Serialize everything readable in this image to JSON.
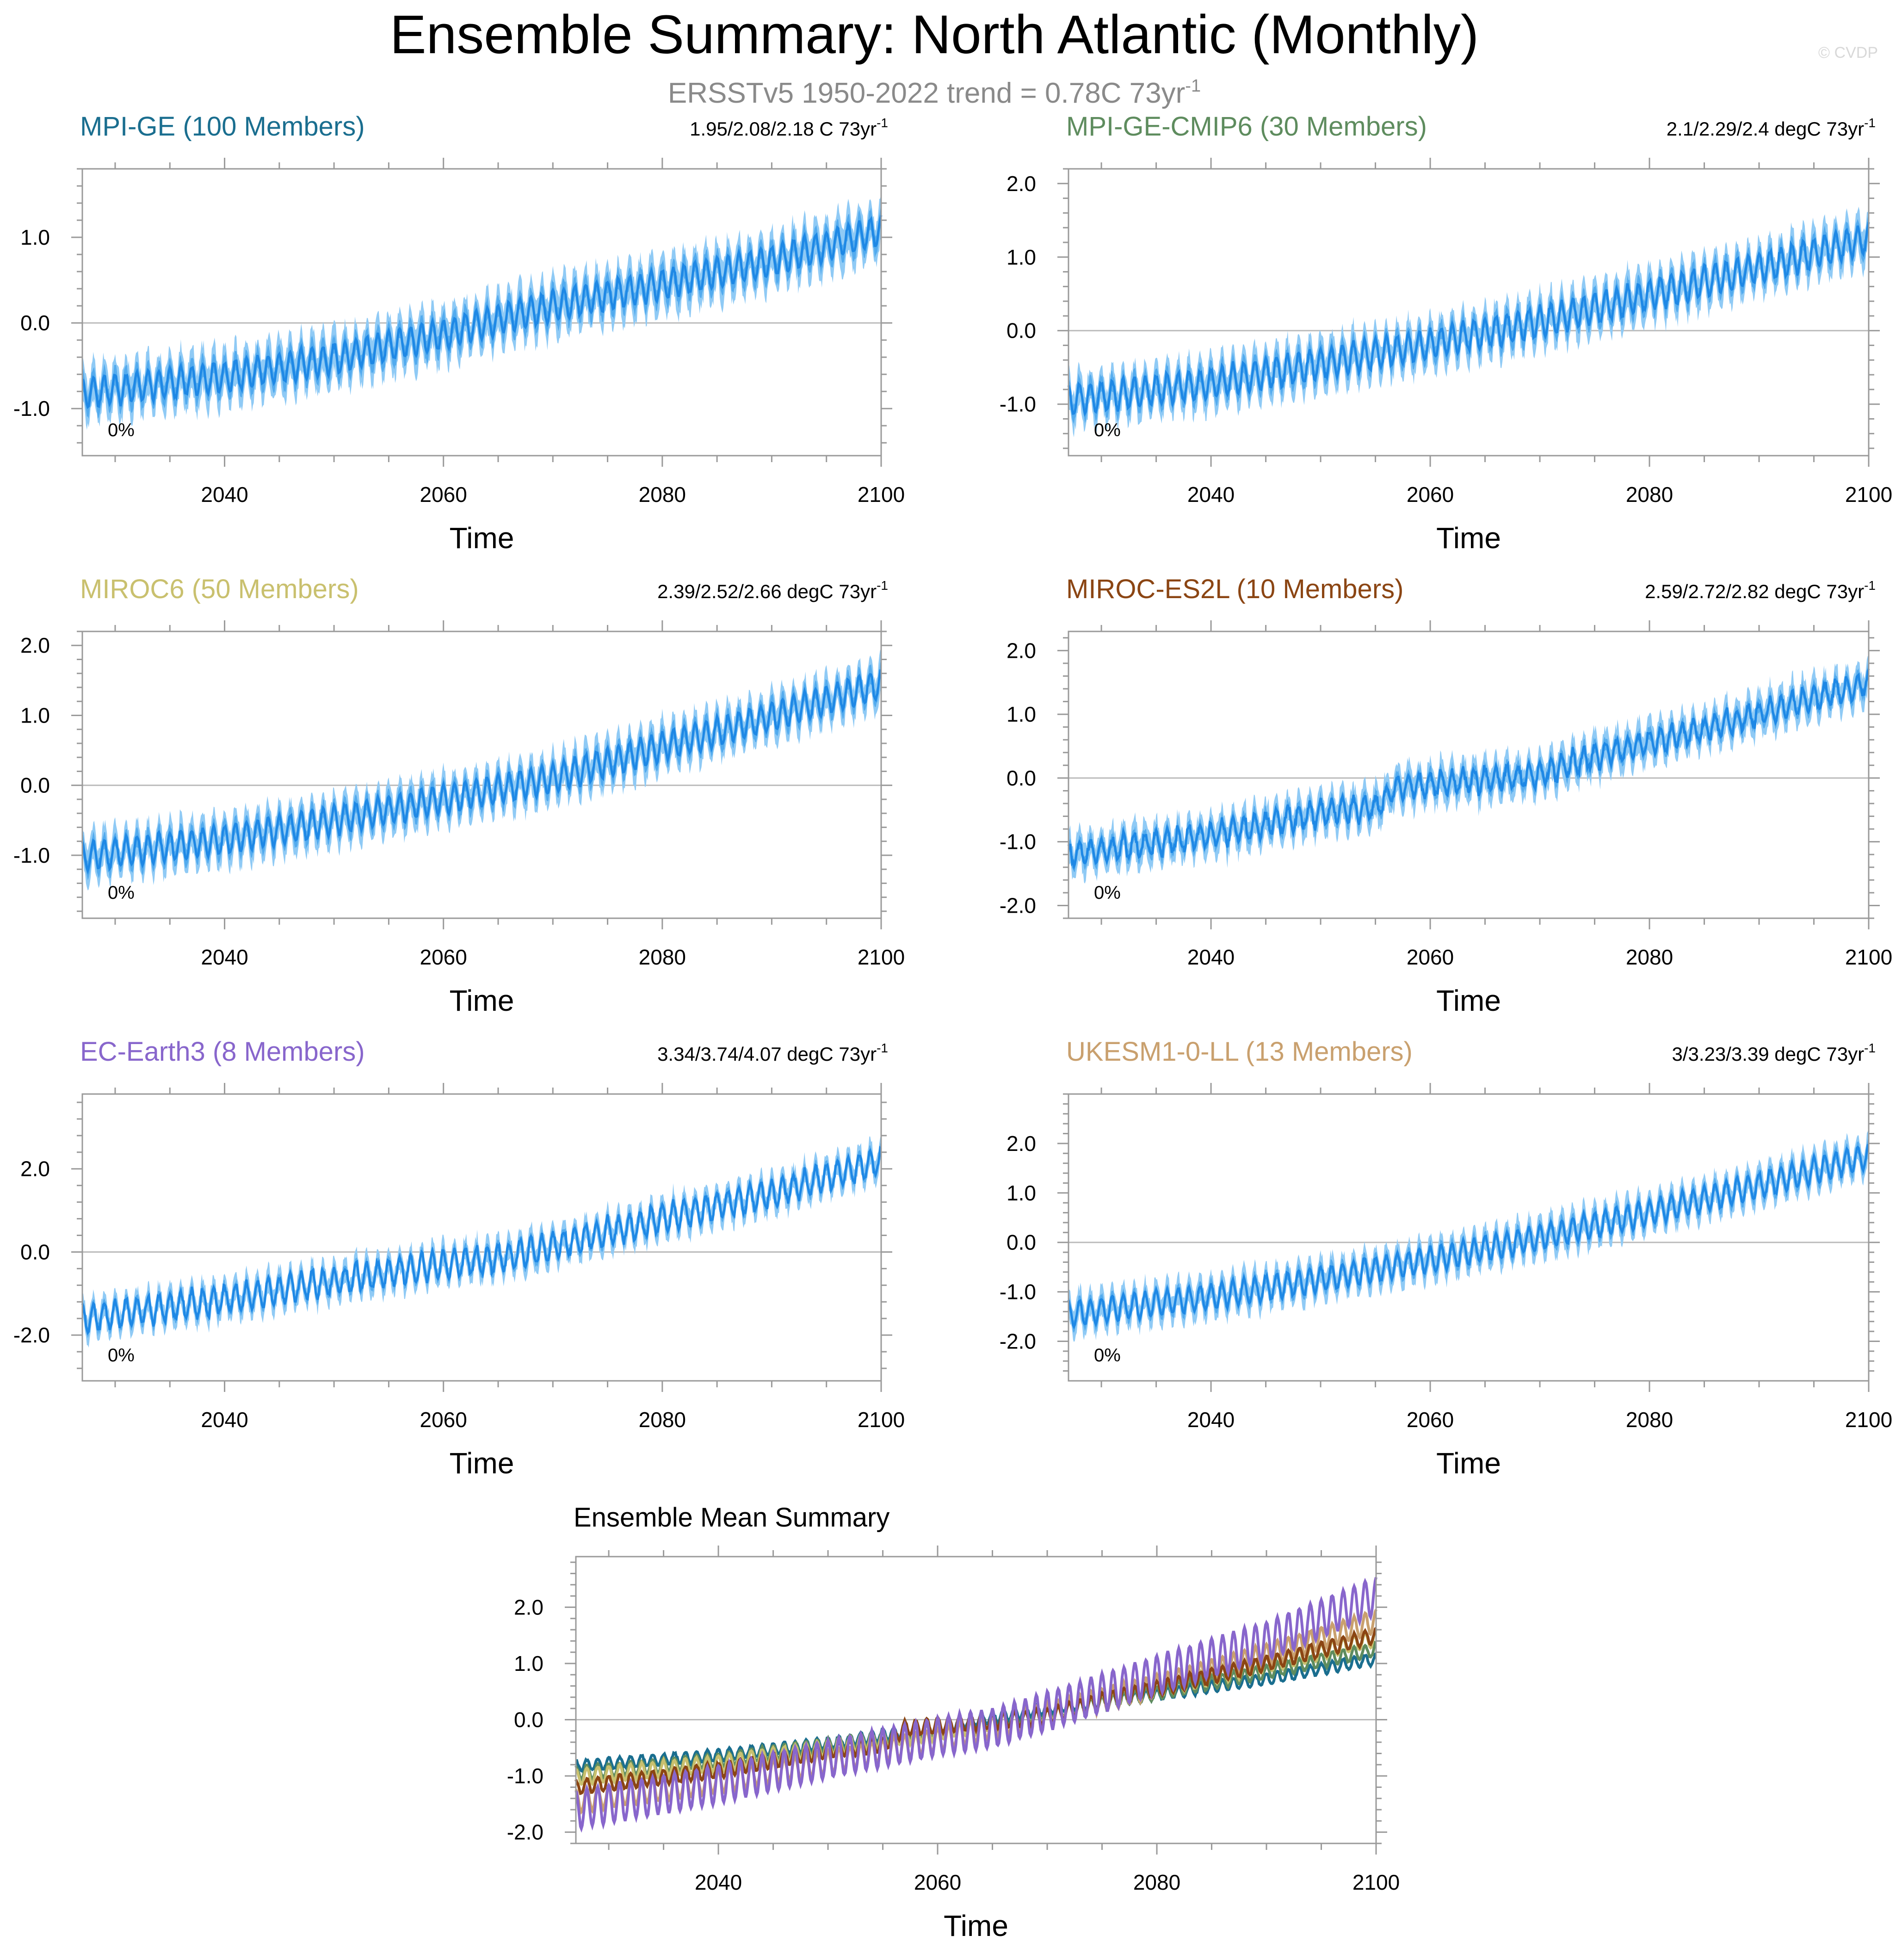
{
  "figure": {
    "title": "Ensemble Summary: North Atlantic (Monthly)",
    "subtitle_main": "ERSSTv5 1950-2022 trend = 0.78C 73yr",
    "subtitle_sup": "-1",
    "watermark": "© CVDP"
  },
  "chart_data": [
    {
      "type": "line",
      "panel": "MPI-GE",
      "title": "MPI-GE (100 Members)",
      "title_color": "#1a6e8f",
      "trend_main": "1.95/2.08/2.18 C 73yr",
      "trend_sup": "-1",
      "pct_label": "0%",
      "xlabel": "Time",
      "xlim": [
        2027,
        2100
      ],
      "xticks": [
        2040,
        2060,
        2080,
        2100
      ],
      "ylim": [
        -1.55,
        1.8
      ],
      "yticks": [
        -1.0,
        0.0,
        1.0
      ],
      "ytick_labels": [
        "-1.0",
        "0.0",
        "1.0"
      ],
      "line_color": "#1e88e5",
      "spread_outer_color": "#8fcaf5",
      "spread_inner_color": "#53abee",
      "mean_anchors": [
        [
          2027,
          -0.82
        ],
        [
          2040,
          -0.63
        ],
        [
          2050,
          -0.42
        ],
        [
          2060,
          -0.13
        ],
        [
          2070,
          0.2
        ],
        [
          2080,
          0.45
        ],
        [
          2090,
          0.72
        ],
        [
          2100,
          1.08
        ]
      ],
      "seasonal_amplitude": 0.17,
      "spread_inner": 0.12,
      "spread_outer": 0.24,
      "noise": 0.04
    },
    {
      "type": "line",
      "panel": "MPI-GE-CMIP6",
      "title": "MPI-GE-CMIP6 (30 Members)",
      "title_color": "#5e8c5e",
      "trend_main": "2.1/2.29/2.4 degC 73yr",
      "trend_sup": "-1",
      "pct_label": "0%",
      "xlabel": "Time",
      "xlim": [
        2027,
        2100
      ],
      "xticks": [
        2040,
        2060,
        2080,
        2100
      ],
      "ylim": [
        -1.7,
        2.2
      ],
      "yticks": [
        -1.0,
        0.0,
        1.0,
        2.0
      ],
      "ytick_labels": [
        "-1.0",
        "0.0",
        "1.0",
        "2.0"
      ],
      "line_color": "#1e88e5",
      "spread_outer_color": "#8fcaf5",
      "spread_inner_color": "#53abee",
      "mean_anchors": [
        [
          2027,
          -0.95
        ],
        [
          2040,
          -0.72
        ],
        [
          2050,
          -0.45
        ],
        [
          2060,
          -0.18
        ],
        [
          2070,
          0.12
        ],
        [
          2080,
          0.48
        ],
        [
          2090,
          0.85
        ],
        [
          2100,
          1.25
        ]
      ],
      "seasonal_amplitude": 0.2,
      "spread_inner": 0.12,
      "spread_outer": 0.25,
      "noise": 0.06
    },
    {
      "type": "line",
      "panel": "MIROC6",
      "title": "MIROC6 (50 Members)",
      "title_color": "#c9c06e",
      "trend_main": "2.39/2.52/2.66 degC 73yr",
      "trend_sup": "-1",
      "pct_label": "0%",
      "xlabel": "Time",
      "xlim": [
        2027,
        2100
      ],
      "xticks": [
        2040,
        2060,
        2080,
        2100
      ],
      "ylim": [
        -1.9,
        2.2
      ],
      "yticks": [
        -1.0,
        0.0,
        1.0,
        2.0
      ],
      "ytick_labels": [
        "-1.0",
        "0.0",
        "1.0",
        "2.0"
      ],
      "line_color": "#1e88e5",
      "spread_outer_color": "#8fcaf5",
      "spread_inner_color": "#53abee",
      "mean_anchors": [
        [
          2027,
          -1.02
        ],
        [
          2040,
          -0.78
        ],
        [
          2050,
          -0.5
        ],
        [
          2060,
          -0.2
        ],
        [
          2070,
          0.1
        ],
        [
          2080,
          0.55
        ],
        [
          2090,
          0.98
        ],
        [
          2100,
          1.45
        ]
      ],
      "seasonal_amplitude": 0.2,
      "spread_inner": 0.12,
      "spread_outer": 0.25,
      "noise": 0.05
    },
    {
      "type": "line",
      "panel": "MIROC-ES2L",
      "title": "MIROC-ES2L (10 Members)",
      "title_color": "#8b4513",
      "trend_main": "2.59/2.72/2.82 degC 73yr",
      "trend_sup": "-1",
      "pct_label": "0%",
      "xlabel": "Time",
      "xlim": [
        2027,
        2100
      ],
      "xticks": [
        2040,
        2060,
        2080,
        2100
      ],
      "ylim": [
        -2.2,
        2.3
      ],
      "yticks": [
        -2.0,
        -1.0,
        0.0,
        1.0,
        2.0
      ],
      "ytick_labels": [
        "-2.0",
        "-1.0",
        "0.0",
        "1.0",
        "2.0"
      ],
      "line_color": "#1e88e5",
      "spread_outer_color": "#8fcaf5",
      "spread_inner_color": "#53abee",
      "mean_anchors": [
        [
          2027,
          -1.2
        ],
        [
          2040,
          -0.9
        ],
        [
          2050,
          -0.55
        ],
        [
          2055,
          -0.45
        ],
        [
          2057,
          -0.15
        ],
        [
          2060,
          -0.1
        ],
        [
          2070,
          0.05
        ],
        [
          2075,
          0.35
        ],
        [
          2080,
          0.55
        ],
        [
          2090,
          1.0
        ],
        [
          2100,
          1.5
        ]
      ],
      "seasonal_amplitude": 0.18,
      "spread_inner": 0.1,
      "spread_outer": 0.25,
      "noise": 0.1
    },
    {
      "type": "line",
      "panel": "EC-Earth3",
      "title": "EC-Earth3 (8 Members)",
      "title_color": "#8866cc",
      "trend_main": "3.34/3.74/4.07 degC 73yr",
      "trend_sup": "-1",
      "pct_label": "0%",
      "xlabel": "Time",
      "xlim": [
        2027,
        2100
      ],
      "xticks": [
        2040,
        2060,
        2080,
        2100
      ],
      "ylim": [
        -3.1,
        3.8
      ],
      "yticks": [
        -2.0,
        0.0,
        2.0
      ],
      "ytick_labels": [
        "-2.0",
        "0.0",
        "2.0"
      ],
      "line_color": "#1e88e5",
      "spread_outer_color": "#8fcaf5",
      "spread_inner_color": "#53abee",
      "mean_anchors": [
        [
          2027,
          -1.6
        ],
        [
          2040,
          -1.15
        ],
        [
          2050,
          -0.7
        ],
        [
          2060,
          -0.3
        ],
        [
          2065,
          -0.15
        ],
        [
          2070,
          0.15
        ],
        [
          2080,
          0.8
        ],
        [
          2090,
          1.4
        ],
        [
          2100,
          2.2
        ]
      ],
      "seasonal_amplitude": 0.32,
      "spread_inner": 0.12,
      "spread_outer": 0.3,
      "noise": 0.12
    },
    {
      "type": "line",
      "panel": "UKESM1-0-LL",
      "title": "UKESM1-0-LL (13 Members)",
      "title_color": "#c9a06e",
      "trend_main": "3/3.23/3.39 degC 73yr",
      "trend_sup": "-1",
      "pct_label": "0%",
      "xlabel": "Time",
      "xlim": [
        2027,
        2100
      ],
      "xticks": [
        2040,
        2060,
        2080,
        2100
      ],
      "ylim": [
        -2.8,
        3.0
      ],
      "yticks": [
        -2.0,
        -1.0,
        0.0,
        1.0,
        2.0
      ],
      "ytick_labels": [
        "-2.0",
        "-1.0",
        "0.0",
        "1.0",
        "2.0"
      ],
      "line_color": "#1e88e5",
      "spread_outer_color": "#8fcaf5",
      "spread_inner_color": "#53abee",
      "mean_anchors": [
        [
          2027,
          -1.45
        ],
        [
          2040,
          -1.1
        ],
        [
          2050,
          -0.75
        ],
        [
          2060,
          -0.35
        ],
        [
          2070,
          0.1
        ],
        [
          2080,
          0.6
        ],
        [
          2090,
          1.15
        ],
        [
          2100,
          1.75
        ]
      ],
      "seasonal_amplitude": 0.25,
      "spread_inner": 0.12,
      "spread_outer": 0.28,
      "noise": 0.06
    },
    {
      "type": "line",
      "panel": "summary",
      "title": "Ensemble Mean Summary",
      "xlabel": "Time",
      "xlim": [
        2027,
        2100
      ],
      "xticks": [
        2040,
        2060,
        2080,
        2100
      ],
      "ylim": [
        -2.2,
        2.9
      ],
      "yticks": [
        -2.0,
        -1.0,
        0.0,
        1.0,
        2.0
      ],
      "ytick_labels": [
        "-2.0",
        "-1.0",
        "0.0",
        "1.0",
        "2.0"
      ],
      "series": [
        {
          "name": "MPI-GE",
          "color": "#1a6e8f",
          "mean_anchors": [
            [
              2027,
              -0.82
            ],
            [
              2040,
              -0.63
            ],
            [
              2050,
              -0.42
            ],
            [
              2060,
              -0.13
            ],
            [
              2070,
              0.2
            ],
            [
              2080,
              0.45
            ],
            [
              2090,
              0.72
            ],
            [
              2100,
              1.08
            ]
          ],
          "seasonal_amplitude": 0.1
        },
        {
          "name": "MPI-GE-CMIP6",
          "color": "#5e8c5e",
          "mean_anchors": [
            [
              2027,
              -0.95
            ],
            [
              2040,
              -0.72
            ],
            [
              2050,
              -0.45
            ],
            [
              2060,
              -0.18
            ],
            [
              2070,
              0.12
            ],
            [
              2080,
              0.48
            ],
            [
              2090,
              0.85
            ],
            [
              2100,
              1.25
            ]
          ],
          "seasonal_amplitude": 0.12
        },
        {
          "name": "MIROC6",
          "color": "#c9c06e",
          "mean_anchors": [
            [
              2027,
              -1.02
            ],
            [
              2040,
              -0.78
            ],
            [
              2050,
              -0.5
            ],
            [
              2060,
              -0.2
            ],
            [
              2070,
              0.1
            ],
            [
              2080,
              0.55
            ],
            [
              2090,
              0.98
            ],
            [
              2100,
              1.45
            ]
          ],
          "seasonal_amplitude": 0.14
        },
        {
          "name": "UKESM1-0-LL",
          "color": "#c9a06e",
          "mean_anchors": [
            [
              2027,
              -1.45
            ],
            [
              2040,
              -1.1
            ],
            [
              2050,
              -0.75
            ],
            [
              2060,
              -0.35
            ],
            [
              2070,
              0.1
            ],
            [
              2080,
              0.6
            ],
            [
              2090,
              1.15
            ],
            [
              2100,
              1.75
            ]
          ],
          "seasonal_amplitude": 0.2
        },
        {
          "name": "MIROC-ES2L",
          "color": "#8b4513",
          "mean_anchors": [
            [
              2027,
              -1.2
            ],
            [
              2040,
              -0.9
            ],
            [
              2050,
              -0.55
            ],
            [
              2055,
              -0.45
            ],
            [
              2057,
              -0.15
            ],
            [
              2060,
              -0.1
            ],
            [
              2070,
              0.05
            ],
            [
              2075,
              0.35
            ],
            [
              2080,
              0.55
            ],
            [
              2090,
              1.0
            ],
            [
              2100,
              1.5
            ]
          ],
          "seasonal_amplitude": 0.13
        },
        {
          "name": "EC-Earth3",
          "color": "#8866cc",
          "mean_anchors": [
            [
              2027,
              -1.6
            ],
            [
              2040,
              -1.15
            ],
            [
              2050,
              -0.7
            ],
            [
              2060,
              -0.3
            ],
            [
              2065,
              -0.15
            ],
            [
              2070,
              0.15
            ],
            [
              2080,
              0.8
            ],
            [
              2090,
              1.4
            ],
            [
              2100,
              2.2
            ]
          ],
          "seasonal_amplitude": 0.34
        }
      ]
    }
  ]
}
